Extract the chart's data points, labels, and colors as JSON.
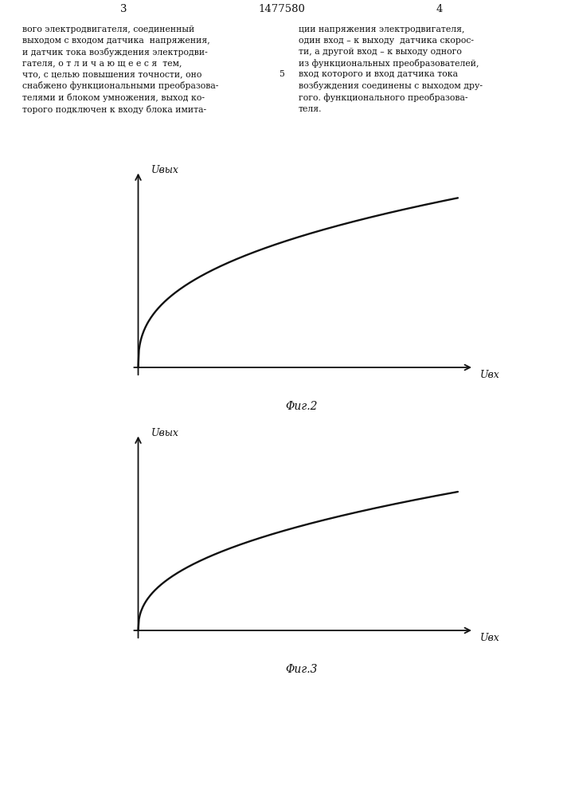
{
  "title_text": "1477580",
  "page_left": "3",
  "page_right": "4",
  "text_left": "вого электродвигателя, соединенный\nвыходом с входом датчика  напряжения,\nи датчик тока возбуждения электродви-\nгателя, о т л и ч а ю щ е е с я  тем,\nчто, с целью повышения точности, оно\nснабжено функциональными преобразова-\nтелями и блоком умножения, выход ко-\nторого подключен к входу блока имита-",
  "text_right": "ции напряжения электродвигателя,\nодин вход – к выходу  датчика скорос-\nти, а другой вход – к выходу одного\nиз функциональных преобразователей,\nвход которого и вход датчика тока\nвозбуждения соединены с выходом дру-\nгого. функционального преобразова-\nтеля.",
  "fig2_caption": "Φиг.2",
  "fig3_caption": "Φиг.3",
  "ylabel": "Uвых",
  "xlabel2": "Uвх",
  "xlabel3": "Uвх",
  "background_color": "#ffffff",
  "curve_color": "#111111",
  "axis_color": "#111111",
  "text_color": "#111111"
}
